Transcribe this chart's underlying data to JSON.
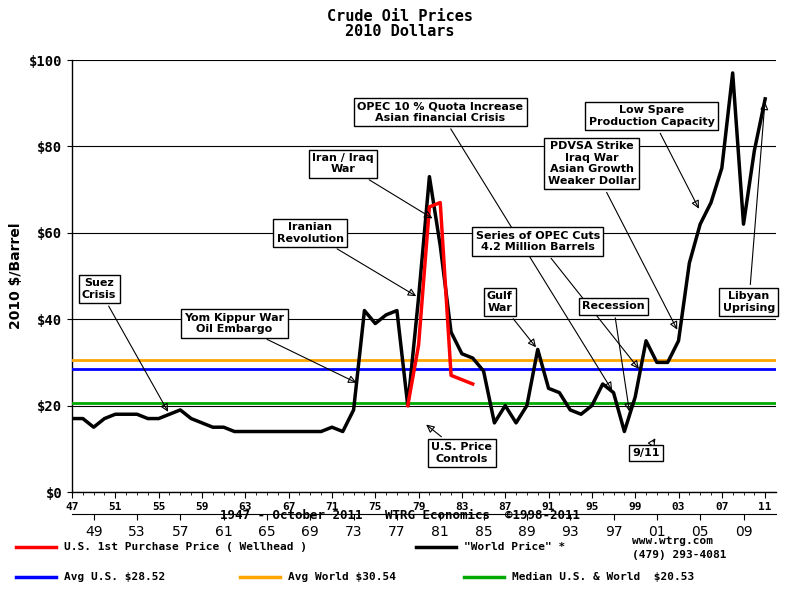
{
  "title1": "Crude Oil Prices",
  "title2": "2010 Dollars",
  "ylabel": "2010 $/Barrel",
  "ylim": [
    0,
    100
  ],
  "avg_us": 28.52,
  "avg_world": 30.54,
  "median": 20.53,
  "avg_us_color": "#0000ff",
  "avg_world_color": "#ffa500",
  "median_color": "#00aa00",
  "world_price_color": "#000000",
  "us_price_color": "#ff0000",
  "world_price_years": [
    1947,
    1948,
    1949,
    1950,
    1951,
    1952,
    1953,
    1954,
    1955,
    1956,
    1957,
    1958,
    1959,
    1960,
    1961,
    1962,
    1963,
    1964,
    1965,
    1966,
    1967,
    1968,
    1969,
    1970,
    1971,
    1972,
    1973,
    1974,
    1975,
    1976,
    1977,
    1978,
    1979,
    1980,
    1981,
    1982,
    1983,
    1984,
    1985,
    1986,
    1987,
    1988,
    1989,
    1990,
    1991,
    1992,
    1993,
    1994,
    1995,
    1996,
    1997,
    1998,
    1999,
    2000,
    2001,
    2002,
    2003,
    2004,
    2005,
    2006,
    2007,
    2008,
    2009,
    2010,
    2011
  ],
  "world_price_vals": [
    17,
    17,
    15,
    17,
    18,
    18,
    18,
    17,
    17,
    18,
    19,
    17,
    16,
    15,
    15,
    14,
    14,
    14,
    14,
    14,
    14,
    14,
    14,
    14,
    15,
    14,
    19,
    42,
    39,
    41,
    42,
    20,
    45,
    73,
    57,
    37,
    32,
    31,
    28,
    16,
    20,
    16,
    20,
    33,
    24,
    23,
    19,
    18,
    20,
    25,
    23,
    14,
    22,
    35,
    30,
    30,
    35,
    53,
    62,
    67,
    75,
    97,
    62,
    79,
    91
  ],
  "us_price_years": [
    1978,
    1979,
    1980,
    1981,
    1982,
    1983,
    1984
  ],
  "us_price_vals": [
    20,
    34,
    66,
    67,
    27,
    26,
    25
  ],
  "line_lw": 2.5,
  "ytick_labels": [
    "$0",
    "$20",
    "$40",
    "$60",
    "$80",
    "$100"
  ],
  "ytick_values": [
    0,
    20,
    40,
    60,
    80,
    100
  ],
  "legend_line1_text1": "U.S. 1st Purchase Price ( Wellhead )",
  "legend_line1_text2": "\"World Price\" *",
  "legend_line2_text1": "Avg U.S. $28.52",
  "legend_line2_text2": "Avg World $30.54",
  "legend_line2_text3": "Median U.S. & World  $20.53",
  "watermark1": "www.wtrg.com",
  "watermark2": "(479) 293-4081",
  "bottom_label": "1947 - October 2011   WTRG Economics  ©1998-2011"
}
